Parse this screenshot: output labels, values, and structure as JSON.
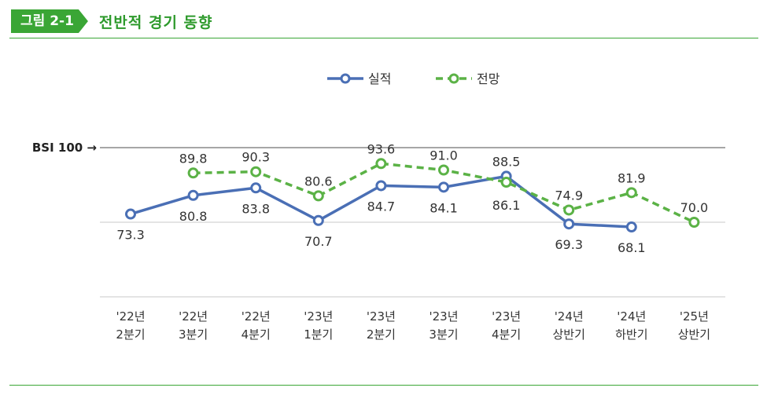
{
  "figure": {
    "badge": "그림 2-1",
    "title": "전반적 경기 동향"
  },
  "colors": {
    "actual": "#4a6fb5",
    "forecast": "#5bb246",
    "accent": "#3aa635"
  },
  "chart_data": {
    "type": "line",
    "categories": [
      [
        "'22년",
        "2분기"
      ],
      [
        "'22년",
        "3분기"
      ],
      [
        "'22년",
        "4분기"
      ],
      [
        "'23년",
        "1분기"
      ],
      [
        "'23년",
        "2분기"
      ],
      [
        "'23년",
        "3분기"
      ],
      [
        "'23년",
        "4분기"
      ],
      [
        "'24년",
        "상반기"
      ],
      [
        "'24년",
        "하반기"
      ],
      [
        "'25년",
        "상반기"
      ]
    ],
    "series": [
      {
        "name": "실적",
        "style": "solid",
        "values": [
          73.3,
          80.8,
          83.8,
          70.7,
          84.7,
          84.1,
          88.5,
          69.3,
          68.1,
          null
        ]
      },
      {
        "name": "전망",
        "style": "dashed",
        "values": [
          null,
          89.8,
          90.3,
          80.6,
          93.6,
          91.0,
          86.1,
          74.9,
          81.9,
          70.0
        ]
      }
    ],
    "reference_line": {
      "value": 100,
      "label": "BSI 100 →"
    },
    "legend_position": "top-center",
    "gridlines": true
  }
}
